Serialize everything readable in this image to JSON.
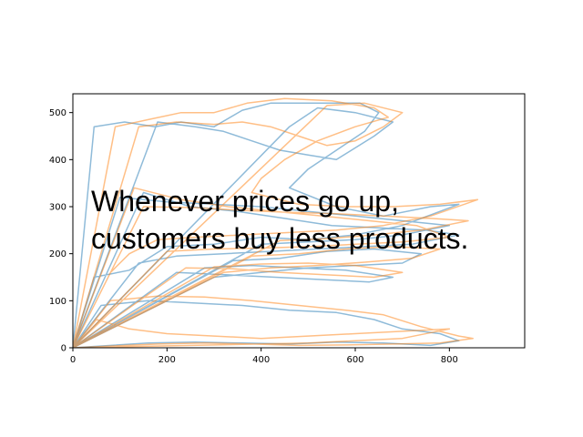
{
  "chart_data": {
    "type": "line",
    "title": "",
    "xlabel": "",
    "ylabel": "",
    "xlim": [
      0,
      960
    ],
    "ylim": [
      0,
      540
    ],
    "xticks": [
      0,
      200,
      400,
      600,
      800
    ],
    "yticks": [
      0,
      100,
      200,
      300,
      400,
      500
    ],
    "grid": false,
    "legend": "none",
    "annotation": {
      "lines": [
        "Whenever prices go up,",
        "customers buy less products."
      ]
    },
    "series": [
      {
        "color": "#1f77b4",
        "alpha": 0.5,
        "points": [
          [
            0,
            0
          ],
          [
            45,
            470
          ],
          [
            110,
            480
          ],
          [
            175,
            470
          ],
          [
            230,
            480
          ],
          [
            300,
            470
          ],
          [
            360,
            505
          ],
          [
            420,
            520
          ],
          [
            520,
            520
          ],
          [
            610,
            520
          ],
          [
            650,
            500
          ],
          [
            620,
            460
          ],
          [
            560,
            420
          ],
          [
            500,
            380
          ],
          [
            460,
            340
          ],
          [
            560,
            300
          ],
          [
            660,
            280
          ],
          [
            760,
            300
          ],
          [
            820,
            305
          ],
          [
            700,
            260
          ],
          [
            600,
            240
          ],
          [
            500,
            230
          ],
          [
            400,
            235
          ],
          [
            300,
            220
          ],
          [
            200,
            215
          ],
          [
            120,
            165
          ],
          [
            45,
            150
          ],
          [
            0,
            0
          ],
          [
            150,
            330
          ],
          [
            250,
            300
          ],
          [
            350,
            290
          ],
          [
            450,
            275
          ],
          [
            550,
            260
          ],
          [
            650,
            255
          ],
          [
            750,
            250
          ],
          [
            820,
            240
          ],
          [
            720,
            220
          ],
          [
            620,
            215
          ],
          [
            520,
            210
          ],
          [
            420,
            205
          ],
          [
            320,
            200
          ],
          [
            220,
            195
          ],
          [
            140,
            180
          ],
          [
            0,
            0
          ],
          [
            180,
            480
          ],
          [
            260,
            470
          ],
          [
            320,
            460
          ],
          [
            380,
            440
          ],
          [
            440,
            420
          ],
          [
            500,
            410
          ],
          [
            560,
            400
          ],
          [
            640,
            450
          ],
          [
            680,
            480
          ],
          [
            600,
            500
          ],
          [
            520,
            510
          ],
          [
            460,
            470
          ],
          [
            0,
            0
          ],
          [
            60,
            90
          ],
          [
            160,
            100
          ],
          [
            260,
            95
          ],
          [
            360,
            90
          ],
          [
            460,
            80
          ],
          [
            560,
            75
          ],
          [
            640,
            60
          ],
          [
            700,
            40
          ],
          [
            780,
            30
          ],
          [
            820,
            15
          ],
          [
            760,
            5
          ],
          [
            660,
            10
          ],
          [
            560,
            12
          ],
          [
            460,
            8
          ],
          [
            360,
            10
          ],
          [
            260,
            12
          ],
          [
            160,
            10
          ],
          [
            0,
            0
          ],
          [
            220,
            160
          ],
          [
            330,
            155
          ],
          [
            430,
            150
          ],
          [
            530,
            145
          ],
          [
            630,
            140
          ],
          [
            680,
            150
          ],
          [
            580,
            165
          ],
          [
            480,
            170
          ],
          [
            380,
            175
          ],
          [
            280,
            170
          ],
          [
            0,
            0
          ],
          [
            100,
            320
          ],
          [
            200,
            310
          ],
          [
            300,
            305
          ],
          [
            400,
            300
          ],
          [
            500,
            290
          ],
          [
            600,
            280
          ],
          [
            700,
            270
          ],
          [
            800,
            260
          ],
          [
            700,
            240
          ],
          [
            600,
            230
          ],
          [
            500,
            225
          ],
          [
            400,
            220
          ],
          [
            0,
            0
          ],
          [
            300,
            150
          ],
          [
            400,
            160
          ],
          [
            500,
            170
          ],
          [
            600,
            175
          ],
          [
            700,
            180
          ],
          [
            740,
            200
          ],
          [
            640,
            210
          ],
          [
            540,
            205
          ],
          [
            440,
            190
          ],
          [
            340,
            185
          ],
          [
            0,
            0
          ]
        ]
      },
      {
        "color": "#ff7f0e",
        "alpha": 0.5,
        "points": [
          [
            0,
            0
          ],
          [
            90,
            470
          ],
          [
            160,
            485
          ],
          [
            230,
            500
          ],
          [
            300,
            500
          ],
          [
            370,
            520
          ],
          [
            450,
            530
          ],
          [
            550,
            525
          ],
          [
            640,
            510
          ],
          [
            670,
            490
          ],
          [
            600,
            470
          ],
          [
            520,
            440
          ],
          [
            450,
            400
          ],
          [
            400,
            360
          ],
          [
            380,
            330
          ],
          [
            480,
            305
          ],
          [
            580,
            300
          ],
          [
            680,
            300
          ],
          [
            780,
            305
          ],
          [
            860,
            315
          ],
          [
            760,
            280
          ],
          [
            660,
            260
          ],
          [
            560,
            250
          ],
          [
            460,
            245
          ],
          [
            360,
            240
          ],
          [
            260,
            235
          ],
          [
            180,
            230
          ],
          [
            120,
            200
          ],
          [
            80,
            160
          ],
          [
            0,
            0
          ],
          [
            130,
            340
          ],
          [
            230,
            315
          ],
          [
            330,
            300
          ],
          [
            430,
            290
          ],
          [
            530,
            280
          ],
          [
            630,
            270
          ],
          [
            730,
            260
          ],
          [
            800,
            235
          ],
          [
            700,
            225
          ],
          [
            600,
            220
          ],
          [
            500,
            215
          ],
          [
            400,
            212
          ],
          [
            300,
            210
          ],
          [
            200,
            205
          ],
          [
            0,
            0
          ],
          [
            140,
            470
          ],
          [
            220,
            480
          ],
          [
            300,
            475
          ],
          [
            360,
            480
          ],
          [
            420,
            470
          ],
          [
            480,
            450
          ],
          [
            540,
            430
          ],
          [
            600,
            440
          ],
          [
            660,
            470
          ],
          [
            700,
            500
          ],
          [
            620,
            520
          ],
          [
            540,
            515
          ],
          [
            0,
            0
          ],
          [
            80,
            100
          ],
          [
            180,
            110
          ],
          [
            280,
            108
          ],
          [
            380,
            100
          ],
          [
            480,
            90
          ],
          [
            580,
            80
          ],
          [
            660,
            70
          ],
          [
            740,
            45
          ],
          [
            820,
            25
          ],
          [
            850,
            20
          ],
          [
            780,
            10
          ],
          [
            680,
            8
          ],
          [
            580,
            6
          ],
          [
            480,
            5
          ],
          [
            380,
            8
          ],
          [
            280,
            10
          ],
          [
            180,
            8
          ],
          [
            0,
            0
          ],
          [
            240,
            170
          ],
          [
            340,
            168
          ],
          [
            440,
            160
          ],
          [
            540,
            155
          ],
          [
            640,
            150
          ],
          [
            700,
            160
          ],
          [
            600,
            175
          ],
          [
            500,
            180
          ],
          [
            400,
            178
          ],
          [
            300,
            172
          ],
          [
            0,
            0
          ],
          [
            150,
            300
          ],
          [
            260,
            298
          ],
          [
            360,
            292
          ],
          [
            460,
            288
          ],
          [
            560,
            285
          ],
          [
            660,
            280
          ],
          [
            760,
            275
          ],
          [
            840,
            270
          ],
          [
            740,
            250
          ],
          [
            640,
            240
          ],
          [
            540,
            232
          ],
          [
            440,
            228
          ],
          [
            0,
            0
          ],
          [
            320,
            160
          ],
          [
            420,
            170
          ],
          [
            520,
            175
          ],
          [
            620,
            182
          ],
          [
            720,
            190
          ],
          [
            780,
            210
          ],
          [
            680,
            215
          ],
          [
            580,
            210
          ],
          [
            480,
            200
          ],
          [
            380,
            195
          ],
          [
            0,
            0
          ],
          [
            50,
            60
          ],
          [
            120,
            40
          ],
          [
            200,
            30
          ],
          [
            300,
            25
          ],
          [
            400,
            20
          ],
          [
            500,
            25
          ],
          [
            600,
            30
          ],
          [
            700,
            35
          ],
          [
            800,
            40
          ],
          [
            700,
            20
          ],
          [
            600,
            15
          ],
          [
            500,
            10
          ],
          [
            0,
            0
          ]
        ]
      }
    ]
  }
}
